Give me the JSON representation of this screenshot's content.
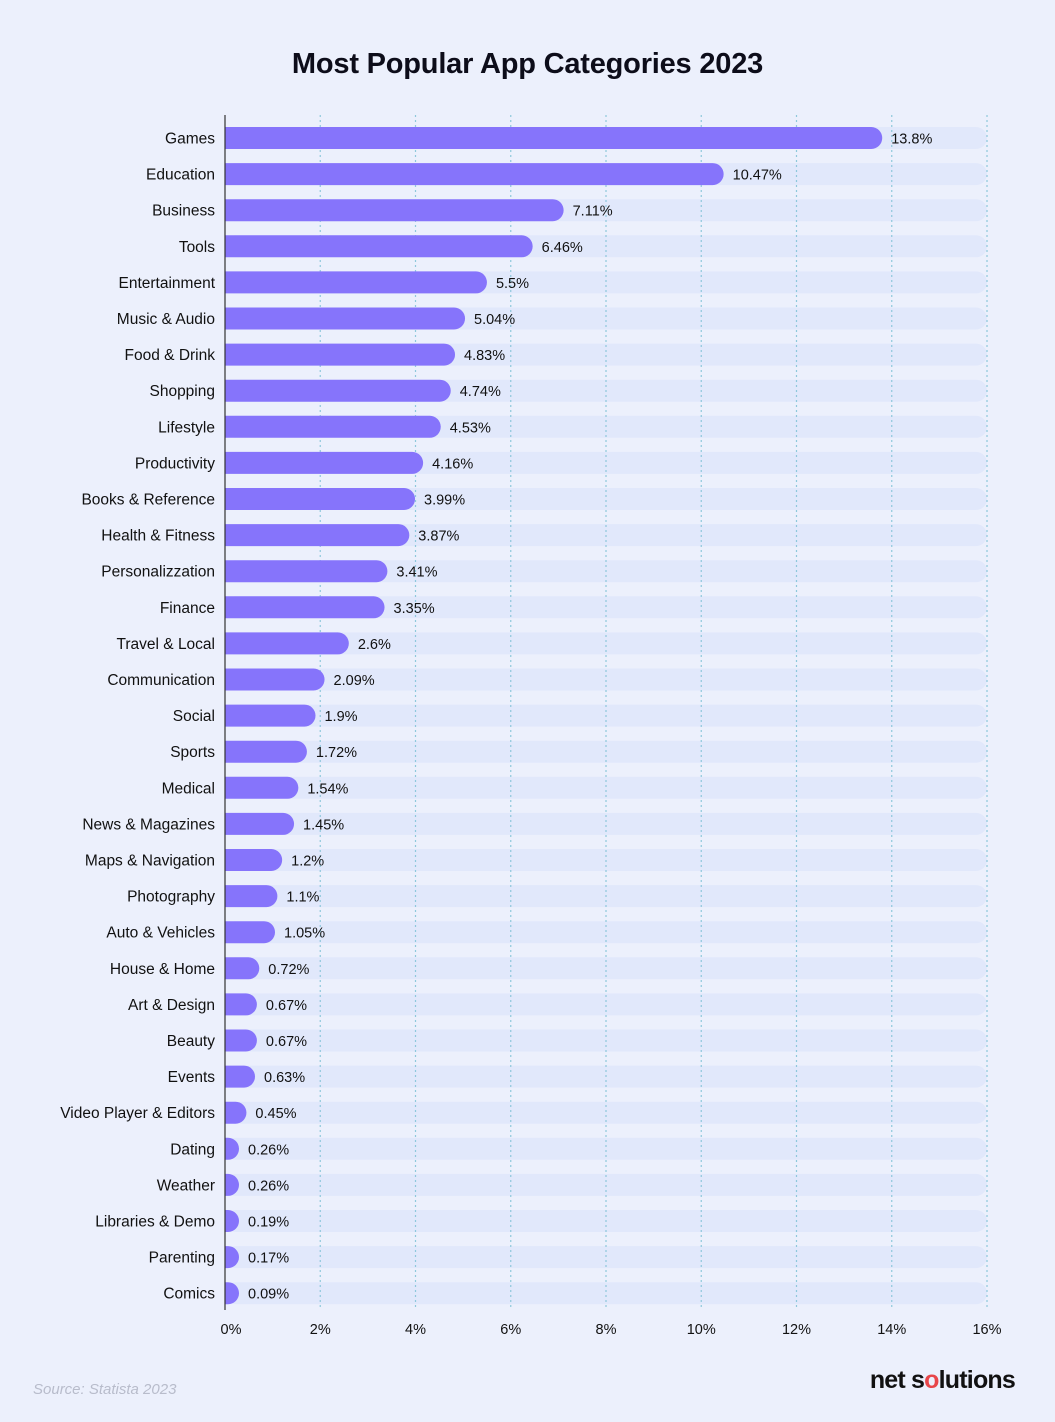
{
  "title": "Most Popular App Categories 2023",
  "source": "Source: Statista 2023",
  "brand": "net solutions",
  "colors": {
    "bar": "#8674fb",
    "track": "#e1e8fb",
    "grid": "#8ec8dc",
    "axis": "#333333",
    "text": "#111111"
  },
  "chart_data": {
    "type": "bar",
    "orientation": "horizontal",
    "title": "Most Popular App Categories 2023",
    "xlabel": "",
    "ylabel": "",
    "xlim": [
      0,
      16
    ],
    "x_ticks": [
      "0%",
      "2%",
      "4%",
      "6%",
      "8%",
      "10%",
      "12%",
      "14%",
      "16%"
    ],
    "grid": "vertical dotted",
    "categories": [
      "Games",
      "Education",
      "Business",
      "Tools",
      "Entertainment",
      "Music & Audio",
      "Food & Drink",
      "Shopping",
      "Lifestyle",
      "Productivity",
      "Books & Reference",
      "Health & Fitness",
      "Personalizzation",
      "Finance",
      "Travel & Local",
      "Communication",
      "Social",
      "Sports",
      "Medical",
      "News & Magazines",
      "Maps & Navigation",
      "Photography",
      "Auto & Vehicles",
      "House & Home",
      "Art & Design",
      "Beauty",
      "Events",
      "Video Player & Editors",
      "Dating",
      "Weather",
      "Libraries & Demo",
      "Parenting",
      "Comics"
    ],
    "values": [
      13.8,
      10.47,
      7.11,
      6.46,
      5.5,
      5.04,
      4.83,
      4.74,
      4.53,
      4.16,
      3.99,
      3.87,
      3.41,
      3.35,
      2.6,
      2.09,
      1.9,
      1.72,
      1.54,
      1.45,
      1.2,
      1.1,
      1.05,
      0.72,
      0.67,
      0.67,
      0.63,
      0.45,
      0.26,
      0.26,
      0.19,
      0.17,
      0.09
    ],
    "value_labels": [
      "13.8%",
      "10.47%",
      "7.11%",
      "6.46%",
      "5.5%",
      "5.04%",
      "4.83%",
      "4.74%",
      "4.53%",
      "4.16%",
      "3.99%",
      "3.87%",
      "3.41%",
      "3.35%",
      "2.6%",
      "2.09%",
      "1.9%",
      "1.72%",
      "1.54%",
      "1.45%",
      "1.2%",
      "1.1%",
      "1.05%",
      "0.72%",
      "0.67%",
      "0.67%",
      "0.63%",
      "0.45%",
      "0.26%",
      "0.26%",
      "0.19%",
      "0.17%",
      "0.09%"
    ]
  }
}
